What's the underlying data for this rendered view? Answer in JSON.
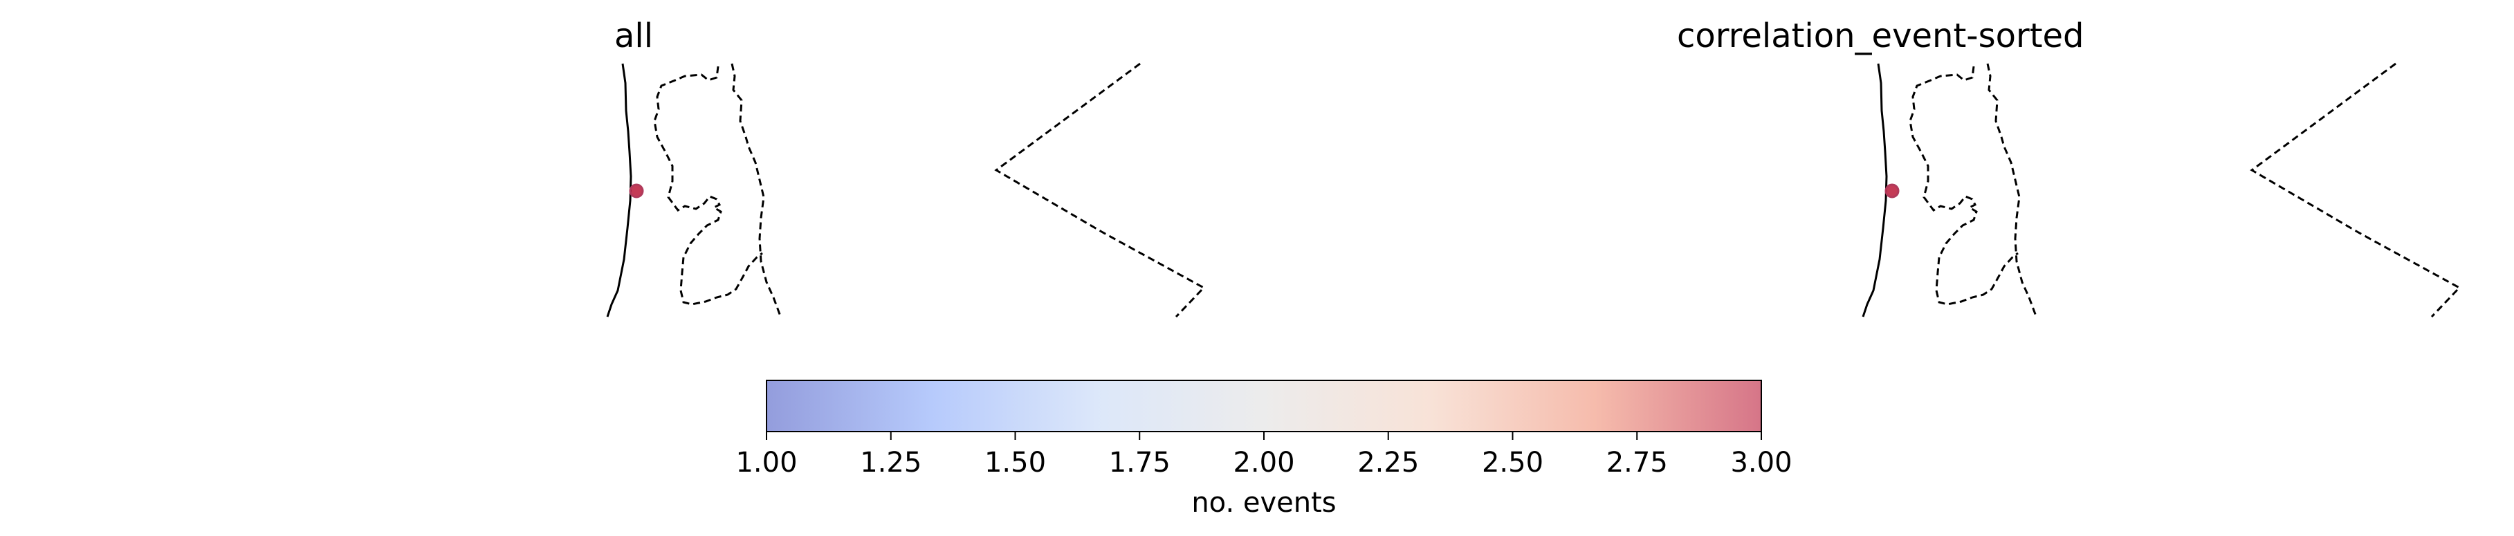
{
  "panels": [
    {
      "title": "all",
      "events": [
        {
          "count": 3
        }
      ]
    },
    {
      "title": "correlation_event-sorted",
      "events": [
        {
          "count": 3
        }
      ]
    }
  ],
  "colorbar": {
    "label": "no. events",
    "min": 1.0,
    "max": 3.0,
    "ticks": [
      "1.00",
      "1.25",
      "1.50",
      "1.75",
      "2.00",
      "2.25",
      "2.50",
      "2.75",
      "3.00"
    ],
    "colormap": "coolwarm",
    "alpha": 0.55,
    "colors": [
      "#3b4cc0",
      "#7b9ff9",
      "#c0d4f5",
      "#dddcdc",
      "#f2cbb7",
      "#ee8468",
      "#b40426"
    ]
  }
}
